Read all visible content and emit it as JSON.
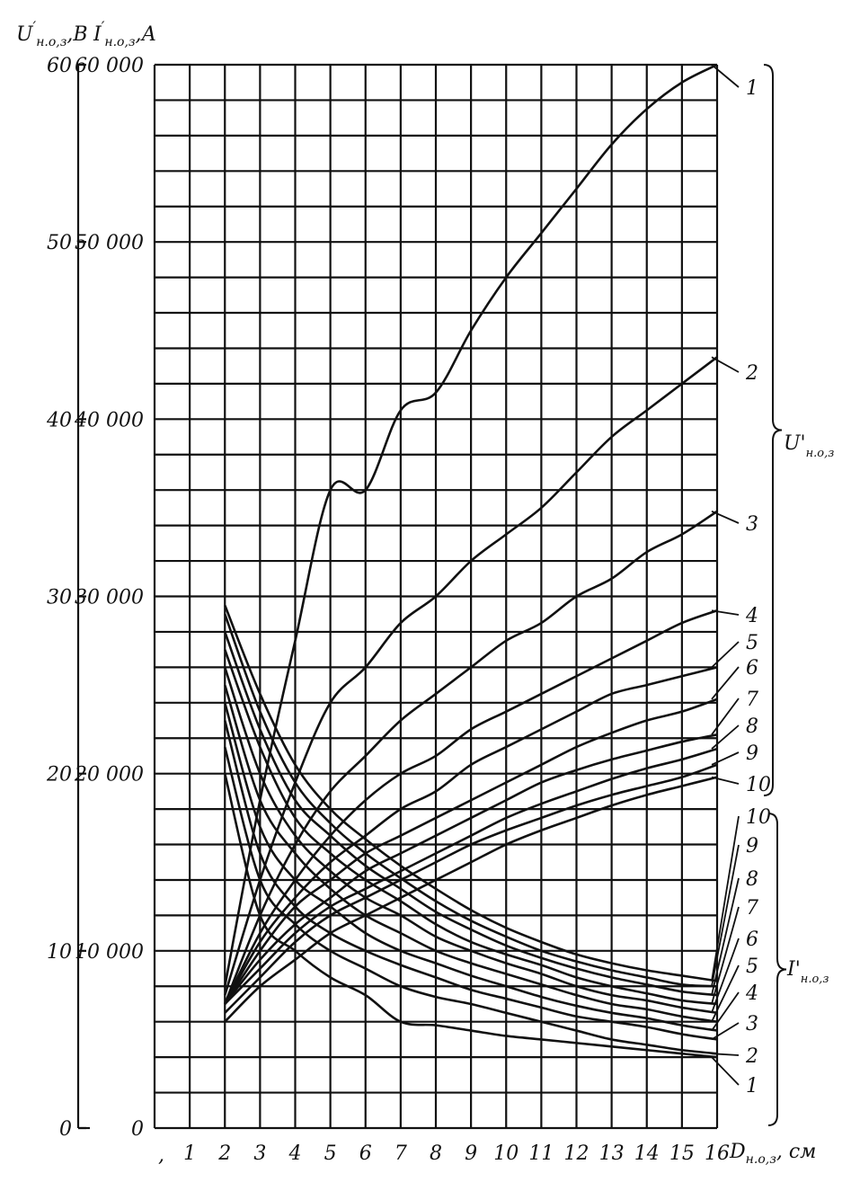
{
  "chart_data": {
    "type": "line",
    "title": "",
    "xlabel": "D_н.о,з, см",
    "ylabel_left": "U'_н.о,з, В",
    "ylabel_right": "I'_н.о,з, А",
    "axis_titles": {
      "x": "D",
      "x_sub": "н.о,з",
      "x_unit": ", см",
      "u": "U",
      "u_sub": "н.о,з",
      "u_unit": ",В",
      "i": "I",
      "i_sub": "н.о,з",
      "i_unit": ",А"
    },
    "xlim": [
      0,
      16
    ],
    "ylim_left": [
      0,
      60
    ],
    "ylim_right": [
      0,
      60000
    ],
    "x_ticks": [
      1,
      2,
      3,
      4,
      5,
      6,
      7,
      8,
      9,
      10,
      11,
      12,
      13,
      14,
      15,
      16
    ],
    "y_ticks_left": [
      0,
      10,
      20,
      30,
      40,
      50,
      60
    ],
    "y_ticks_right": [
      "0",
      "10 000",
      "20 000",
      "30 000",
      "40 000",
      "50 000",
      "60 000"
    ],
    "grid": true,
    "groups": [
      {
        "name": "U'",
        "sub": "н.о,з",
        "unit": "V",
        "series": [
          {
            "name": "1",
            "x": [
              2,
              3,
              4,
              5,
              6,
              7,
              8,
              9,
              10,
              11,
              12,
              13,
              14,
              15,
              16
            ],
            "values": [
              8,
              18.5,
              27.5,
              36,
              36,
              40.5,
              41.5,
              45,
              48,
              50.5,
              53,
              55.5,
              57.5,
              59,
              60
            ]
          },
          {
            "name": "2",
            "x": [
              2,
              3,
              4,
              5,
              6,
              7,
              8,
              9,
              10,
              11,
              12,
              13,
              14,
              15,
              16
            ],
            "values": [
              7.5,
              14,
              19.5,
              24,
              26,
              28.5,
              30,
              32,
              33.5,
              35,
              37,
              39,
              40.5,
              42,
              43.5
            ]
          },
          {
            "name": "3",
            "x": [
              2,
              3,
              4,
              5,
              6,
              7,
              8,
              9,
              10,
              11,
              12,
              13,
              14,
              15,
              16
            ],
            "values": [
              7,
              12,
              16,
              19,
              21,
              23,
              24.5,
              26,
              27.5,
              28.5,
              30,
              31,
              32.5,
              33.5,
              34.8
            ]
          },
          {
            "name": "4",
            "x": [
              2,
              3,
              4,
              5,
              6,
              7,
              8,
              9,
              10,
              11,
              12,
              13,
              14,
              15,
              16
            ],
            "values": [
              7,
              11,
              14,
              16.5,
              18.5,
              20,
              21,
              22.5,
              23.5,
              24.5,
              25.5,
              26.5,
              27.5,
              28.5,
              29.2
            ]
          },
          {
            "name": "5",
            "x": [
              2,
              3,
              4,
              5,
              6,
              7,
              8,
              9,
              10,
              11,
              12,
              13,
              14,
              15,
              16
            ],
            "values": [
              7,
              10.5,
              13,
              15,
              16.5,
              18,
              19,
              20.5,
              21.5,
              22.5,
              23.5,
              24.5,
              25,
              25.5,
              26
            ]
          },
          {
            "name": "6",
            "x": [
              2,
              3,
              4,
              5,
              6,
              7,
              8,
              9,
              10,
              11,
              12,
              13,
              14,
              15,
              16
            ],
            "values": [
              7,
              10,
              12.5,
              14,
              15.5,
              16.5,
              17.5,
              18.5,
              19.5,
              20.5,
              21.5,
              22.3,
              23,
              23.5,
              24.2
            ]
          },
          {
            "name": "7",
            "x": [
              2,
              3,
              4,
              5,
              6,
              7,
              8,
              9,
              10,
              11,
              12,
              13,
              14,
              15,
              16
            ],
            "values": [
              7,
              9.5,
              11.5,
              13,
              14.5,
              15.5,
              16.5,
              17.5,
              18.5,
              19.5,
              20.2,
              20.8,
              21.3,
              21.8,
              22.2
            ]
          },
          {
            "name": "8",
            "x": [
              2,
              3,
              4,
              5,
              6,
              7,
              8,
              9,
              10,
              11,
              12,
              13,
              14,
              15,
              16
            ],
            "values": [
              7,
              9,
              11,
              12.5,
              13.5,
              14.5,
              15.5,
              16.5,
              17.5,
              18.3,
              19,
              19.7,
              20.3,
              20.8,
              21.4
            ]
          },
          {
            "name": "9",
            "x": [
              2,
              3,
              4,
              5,
              6,
              7,
              8,
              9,
              10,
              11,
              12,
              13,
              14,
              15,
              16
            ],
            "values": [
              6.5,
              8.5,
              10.5,
              12,
              13,
              14,
              15,
              16,
              16.8,
              17.5,
              18.2,
              18.8,
              19.3,
              19.8,
              20.5
            ]
          },
          {
            "name": "10",
            "x": [
              2,
              3,
              4,
              5,
              6,
              7,
              8,
              9,
              10,
              11,
              12,
              13,
              14,
              15,
              16
            ],
            "values": [
              6,
              8,
              9.5,
              11,
              12,
              13,
              14,
              15,
              16,
              16.8,
              17.5,
              18.2,
              18.8,
              19.3,
              19.8
            ]
          }
        ]
      },
      {
        "name": "I'",
        "sub": "н.о,з",
        "unit": "A",
        "series": [
          {
            "name": "1",
            "x": [
              2,
              3,
              4,
              5,
              6,
              7,
              8,
              9,
              10,
              11,
              12,
              13,
              14,
              15,
              16
            ],
            "values": [
              20000,
              12000,
              10000,
              8500,
              7500,
              6000,
              5800,
              5500,
              5200,
              5000,
              4800,
              4600,
              4400,
              4200,
              4000
            ]
          },
          {
            "name": "2",
            "x": [
              2,
              3,
              4,
              5,
              6,
              7,
              8,
              9,
              10,
              11,
              12,
              13,
              14,
              15,
              16
            ],
            "values": [
              21500,
              14000,
              11500,
              10000,
              9000,
              8000,
              7400,
              7000,
              6500,
              6000,
              5500,
              5000,
              4700,
              4400,
              4200
            ]
          },
          {
            "name": "3",
            "x": [
              2,
              3,
              4,
              5,
              6,
              7,
              8,
              9,
              10,
              11,
              12,
              13,
              14,
              15,
              16
            ],
            "values": [
              23000,
              15500,
              12500,
              11000,
              10000,
              9200,
              8500,
              7800,
              7300,
              6800,
              6300,
              6000,
              5700,
              5300,
              5000
            ]
          },
          {
            "name": "4",
            "x": [
              2,
              3,
              4,
              5,
              6,
              7,
              8,
              9,
              10,
              11,
              12,
              13,
              14,
              15,
              16
            ],
            "values": [
              24000,
              17000,
              14000,
              12500,
              11000,
              10000,
              9300,
              8600,
              8000,
              7400,
              6900,
              6500,
              6200,
              5800,
              5500
            ]
          },
          {
            "name": "5",
            "x": [
              2,
              3,
              4,
              5,
              6,
              7,
              8,
              9,
              10,
              11,
              12,
              13,
              14,
              15,
              16
            ],
            "values": [
              25000,
              18500,
              15500,
              13500,
              12000,
              11000,
              10000,
              9300,
              8700,
              8100,
              7500,
              7000,
              6700,
              6300,
              6000
            ]
          },
          {
            "name": "6",
            "x": [
              2,
              3,
              4,
              5,
              6,
              7,
              8,
              9,
              10,
              11,
              12,
              13,
              14,
              15,
              16
            ],
            "values": [
              26000,
              20000,
              16500,
              14500,
              13000,
              12000,
              10800,
              10000,
              9300,
              8700,
              8000,
              7500,
              7200,
              6800,
              6500
            ]
          },
          {
            "name": "7",
            "x": [
              2,
              3,
              4,
              5,
              6,
              7,
              8,
              9,
              10,
              11,
              12,
              13,
              14,
              15,
              16
            ],
            "values": [
              27000,
              21500,
              17500,
              15500,
              14000,
              12800,
              11500,
              10500,
              9800,
              9200,
              8500,
              8000,
              7600,
              7200,
              7000
            ]
          },
          {
            "name": "8",
            "x": [
              2,
              3,
              4,
              5,
              6,
              7,
              8,
              9,
              10,
              11,
              12,
              13,
              14,
              15,
              16
            ],
            "values": [
              28000,
              22500,
              18500,
              16500,
              14800,
              13500,
              12200,
              11200,
              10300,
              9600,
              9000,
              8500,
              8100,
              7700,
              7500
            ]
          },
          {
            "name": "9",
            "x": [
              2,
              3,
              4,
              5,
              6,
              7,
              8,
              9,
              10,
              11,
              12,
              13,
              14,
              15,
              16
            ],
            "values": [
              29000,
              23500,
              19500,
              17200,
              15500,
              14100,
              12800,
              11700,
              10800,
              10000,
              9400,
              8900,
              8500,
              8100,
              8000
            ]
          },
          {
            "name": "10",
            "x": [
              2,
              3,
              4,
              5,
              6,
              7,
              8,
              9,
              10,
              11,
              12,
              13,
              14,
              15,
              16
            ],
            "values": [
              29500,
              24500,
              20500,
              18000,
              16300,
              14800,
              13500,
              12300,
              11300,
              10500,
              9800,
              9300,
              8900,
              8600,
              8300
            ]
          }
        ]
      }
    ],
    "origin_label_x": ","
  }
}
